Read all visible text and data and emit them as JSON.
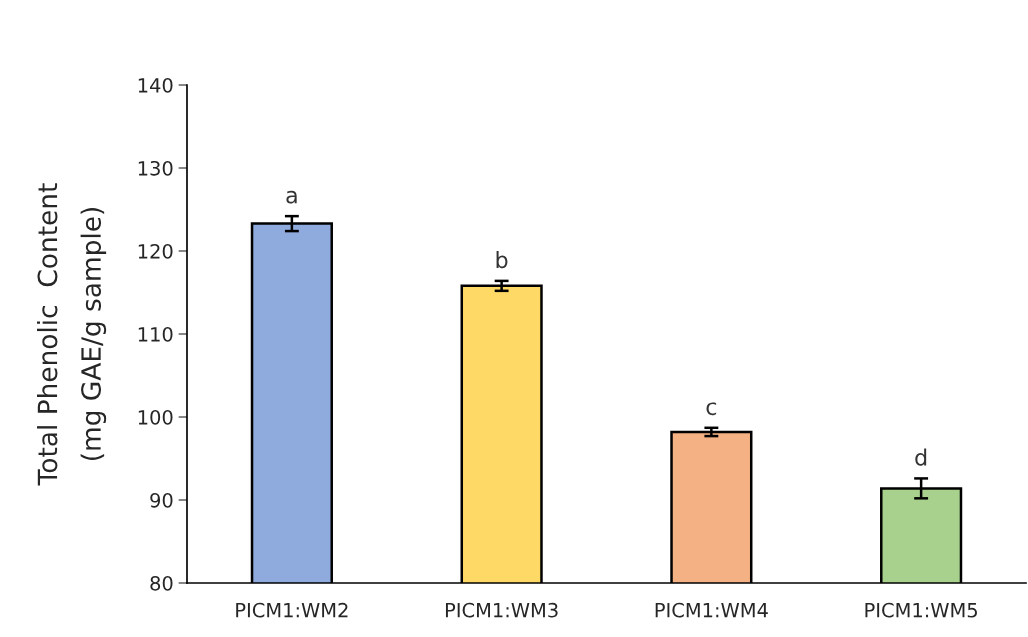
{
  "chart_data": {
    "type": "bar",
    "ylabel": "Total Phenolic  Content\n(mg GAE/g sample)",
    "categories": [
      "PICM1:WM2",
      "PICM1:WM3",
      "PICM1:WM4",
      "PICM1:WM5"
    ],
    "values": [
      123.3,
      115.8,
      98.2,
      91.4
    ],
    "errors": [
      0.9,
      0.6,
      0.5,
      1.2
    ],
    "colors": [
      "#8faadc",
      "#ffd966",
      "#f4b183",
      "#a9d18e"
    ],
    "ylim": [
      80,
      140
    ],
    "yticks": [
      80,
      90,
      100,
      110,
      120,
      130,
      140
    ],
    "grid": false,
    "legend": false,
    "annotations": [
      {
        "text": "a",
        "x": "PICM1:WM2",
        "y": 124.2
      },
      {
        "text": "b",
        "x": "PICM1:WM3",
        "y": 116.4
      },
      {
        "text": "c",
        "x": "PICM1:WM4",
        "y": 98.7
      },
      {
        "text": "d",
        "x": "PICM1:WM5",
        "y": 92.6
      }
    ]
  }
}
